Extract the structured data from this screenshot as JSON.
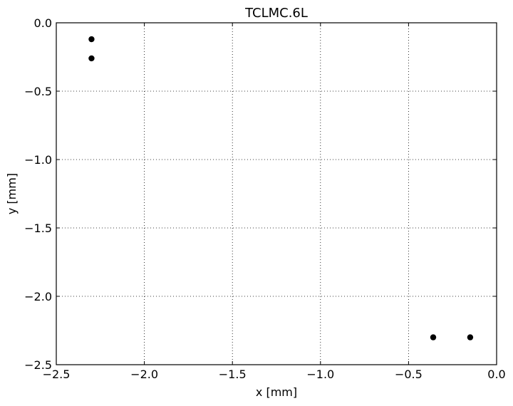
{
  "chart_data": {
    "type": "scatter",
    "title": "TCLMC.6L",
    "xlabel": "x [mm]",
    "ylabel": "y [mm]",
    "xlim": [
      -2.5,
      0.0
    ],
    "ylim": [
      -2.5,
      0.0
    ],
    "xticks": [
      -2.5,
      -2.0,
      -1.5,
      -1.0,
      -0.5,
      0.0
    ],
    "yticks": [
      0.0,
      -0.5,
      -1.0,
      -1.5,
      -2.0,
      -2.5
    ],
    "xtick_labels": [
      "−2.5",
      "−2.0",
      "−1.5",
      "−1.0",
      "−0.5",
      "0.0"
    ],
    "ytick_labels": [
      "0.0",
      "−0.5",
      "−1.0",
      "−1.5",
      "−2.0",
      "−2.5"
    ],
    "grid": true,
    "marker_color": "#000000",
    "series": [
      {
        "points": [
          {
            "x": -2.3,
            "y": -0.12
          },
          {
            "x": -2.3,
            "y": -0.26
          },
          {
            "x": -0.36,
            "y": -2.3
          },
          {
            "x": -0.15,
            "y": -2.3
          }
        ]
      }
    ]
  }
}
